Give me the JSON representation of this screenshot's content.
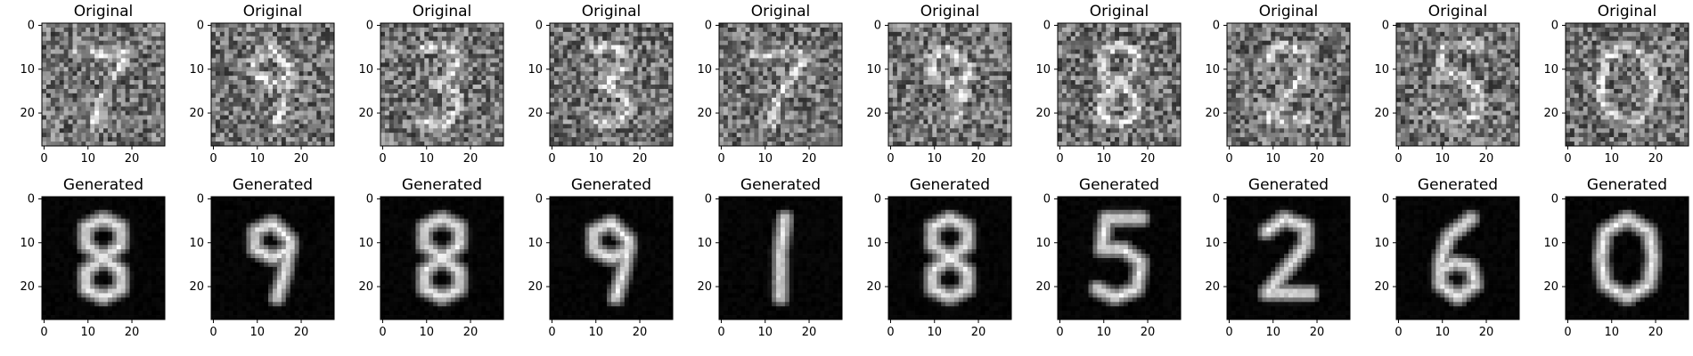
{
  "figure": {
    "row_titles": [
      "Original",
      "Generated"
    ],
    "panel_count_per_row": 10,
    "axis": {
      "x_ticks": [
        "0",
        "10",
        "20"
      ],
      "y_ticks": [
        "0",
        "10",
        "20"
      ],
      "image_size": 28
    },
    "colors": {
      "background": "#ffffff",
      "axes": "#000000",
      "original_noise_mid": "#7f7f7f",
      "generated_bg": "#000000",
      "stroke": "#ffffff"
    },
    "digits_original": [
      "7",
      "9",
      "3",
      "3",
      "7",
      "9",
      "8",
      "2",
      "5",
      "0"
    ],
    "digits_generated": [
      "8",
      "9",
      "8",
      "9",
      "1",
      "8",
      "5",
      "2",
      "6",
      "0"
    ]
  }
}
